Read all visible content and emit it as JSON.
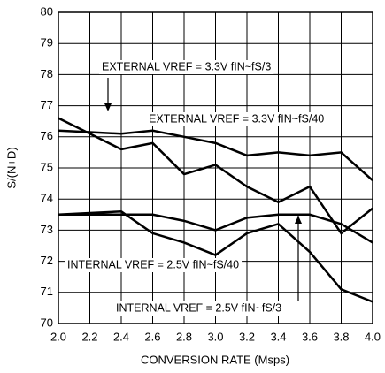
{
  "chart_data": {
    "type": "line",
    "x": [
      2.0,
      2.2,
      2.4,
      2.6,
      2.8,
      3.0,
      3.2,
      3.4,
      3.6,
      3.8,
      4.0
    ],
    "series": [
      {
        "name": "EXTERNAL VREF = 3.3V fIN~fS/3",
        "color": "#000000",
        "values": [
          76.6,
          76.1,
          75.6,
          75.8,
          74.8,
          75.1,
          74.4,
          73.9,
          74.4,
          72.9,
          73.7
        ]
      },
      {
        "name": "EXTERNAL VREF = 3.3V fIN~fS/40",
        "color": "#000000",
        "values": [
          76.2,
          76.15,
          76.1,
          76.2,
          76.0,
          75.8,
          75.4,
          75.5,
          75.4,
          75.5,
          74.6
        ]
      },
      {
        "name": "INTERNAL VREF = 2.5V fIN~fS/40",
        "color": "#000000",
        "values": [
          73.5,
          73.55,
          73.6,
          72.9,
          72.6,
          72.2,
          72.9,
          73.2,
          72.3,
          71.1,
          70.7
        ]
      },
      {
        "name": "INTERNAL VREF = 2.5V fIN~fS/3",
        "color": "#000000",
        "values": [
          73.5,
          73.5,
          73.5,
          73.5,
          73.3,
          73.0,
          73.4,
          73.5,
          73.5,
          73.2,
          72.6
        ]
      }
    ],
    "x_label": "CONVERSION RATE (Msps)",
    "y_label": "S/(N+D)",
    "xlim": [
      2.0,
      4.0
    ],
    "xticks": [
      {
        "value": 2,
        "label": "2.0"
      },
      2.2,
      2.4,
      2.6,
      2.8,
      {
        "value": 3,
        "label": "3.0"
      },
      3.2,
      3.4,
      3.6,
      3.8,
      {
        "value": 4,
        "label": "4.0"
      }
    ],
    "ylim": [
      70,
      80
    ],
    "yticks": [
      70,
      71,
      72,
      73,
      74,
      75,
      76,
      77,
      78,
      79,
      80
    ],
    "grid": true
  }
}
